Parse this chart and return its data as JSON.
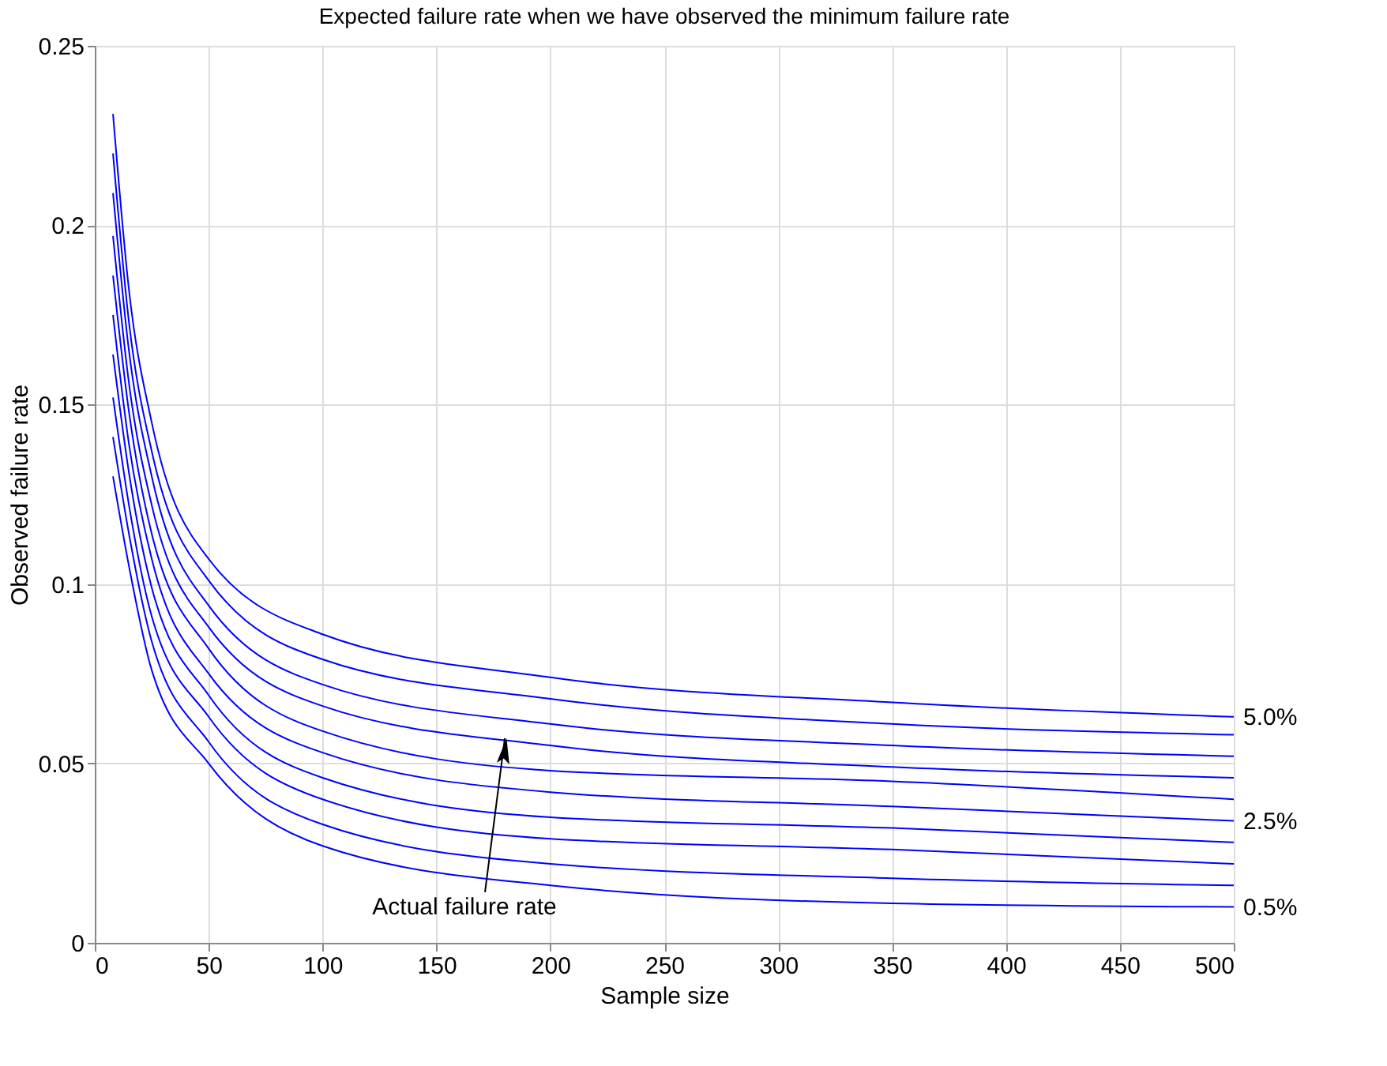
{
  "chart_data": {
    "type": "line",
    "title": "Expected failure rate when we have observed the minimum failure rate",
    "xlabel": "Sample size",
    "ylabel": "Observed failure rate",
    "x": [
      8,
      15,
      25,
      50,
      100,
      200,
      350,
      500
    ],
    "series": [
      {
        "name": "0.5%",
        "color": "#0000ff",
        "values": [
          0.13,
          0.105,
          0.076,
          0.05,
          0.027,
          0.016,
          0.011,
          0.01
        ]
      },
      {
        "color": "#0000ff",
        "values": [
          0.141,
          0.114,
          0.084,
          0.056,
          0.033,
          0.022,
          0.018,
          0.016
        ]
      },
      {
        "color": "#0000ff",
        "values": [
          0.152,
          0.122,
          0.091,
          0.063,
          0.04,
          0.029,
          0.026,
          0.022
        ]
      },
      {
        "color": "#0000ff",
        "values": [
          0.164,
          0.131,
          0.099,
          0.069,
          0.046,
          0.035,
          0.032,
          0.028
        ]
      },
      {
        "name": "2.5%",
        "color": "#0000ff",
        "values": [
          0.175,
          0.139,
          0.107,
          0.075,
          0.053,
          0.042,
          0.038,
          0.034
        ]
      },
      {
        "color": "#0000ff",
        "values": [
          0.186,
          0.148,
          0.114,
          0.082,
          0.059,
          0.048,
          0.045,
          0.04
        ]
      },
      {
        "color": "#0000ff",
        "values": [
          0.197,
          0.156,
          0.122,
          0.088,
          0.066,
          0.055,
          0.049,
          0.046
        ]
      },
      {
        "color": "#0000ff",
        "values": [
          0.209,
          0.165,
          0.13,
          0.094,
          0.072,
          0.061,
          0.055,
          0.052
        ]
      },
      {
        "color": "#0000ff",
        "values": [
          0.22,
          0.173,
          0.137,
          0.101,
          0.079,
          0.068,
          0.061,
          0.058
        ]
      },
      {
        "name": "5.0%",
        "color": "#0000ff",
        "values": [
          0.231,
          0.182,
          0.145,
          0.107,
          0.086,
          0.074,
          0.067,
          0.063
        ]
      }
    ],
    "xlim": [
      0,
      500
    ],
    "xticks": [
      0,
      50,
      100,
      150,
      200,
      250,
      300,
      350,
      400,
      450,
      500
    ],
    "ylim": [
      0,
      0.25
    ],
    "yticks": [
      0,
      0.05,
      0.1,
      0.15,
      0.2,
      0.25
    ],
    "annotations": [
      {
        "text": "Actual failure rate",
        "x": 180,
        "y": 0.057
      }
    ],
    "grid": true,
    "line_style": "solid"
  }
}
